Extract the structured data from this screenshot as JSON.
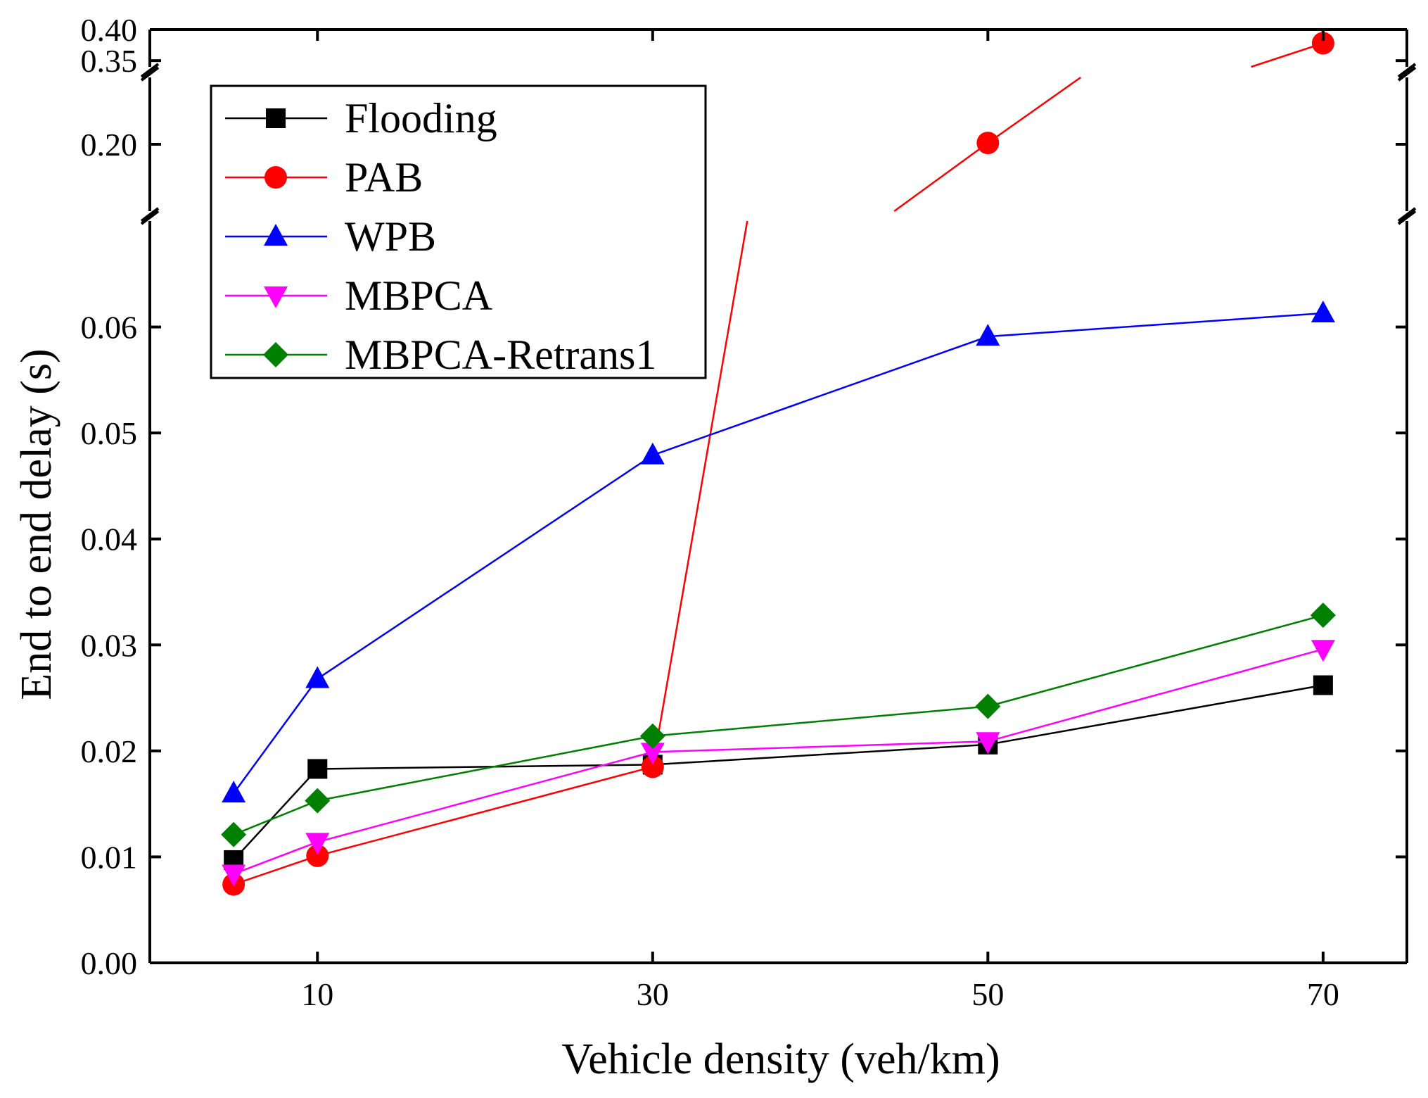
{
  "chart_data": {
    "type": "line",
    "title": "",
    "xlabel": "Vehicle density (veh/km)",
    "ylabel": "End to end delay (s)",
    "x": [
      5,
      10,
      30,
      50,
      70
    ],
    "xlim": [
      0,
      75
    ],
    "xticks": [
      10,
      30,
      50,
      70
    ],
    "xtick_labels": [
      "10",
      "30",
      "50",
      "70"
    ],
    "y_segments": [
      {
        "range": [
          0,
          0.07
        ],
        "ticks": [
          0.0,
          0.01,
          0.02,
          0.03,
          0.04,
          0.05,
          0.06
        ],
        "tick_labels": [
          "0.00",
          "0.01",
          "0.02",
          "0.03",
          "0.04",
          "0.05",
          "0.06"
        ]
      },
      {
        "range": [
          0.15,
          0.25
        ],
        "ticks": [
          0.2
        ],
        "tick_labels": [
          "0.20"
        ]
      },
      {
        "range": [
          0.34,
          0.4
        ],
        "ticks": [
          0.35,
          0.4
        ],
        "tick_labels": [
          "0.35",
          "0.40"
        ]
      }
    ],
    "legend_position": "top-left",
    "series": [
      {
        "name": "Flooding",
        "color": "#000000",
        "marker": "square",
        "values": [
          0.0097,
          0.0183,
          0.0187,
          0.0206,
          0.0262
        ]
      },
      {
        "name": "PAB",
        "color": "#ff0000",
        "marker": "circle",
        "values": [
          0.0074,
          0.0101,
          0.0185,
          0.201,
          0.378
        ]
      },
      {
        "name": "WPB",
        "color": "#0000ff",
        "marker": "triangle-up",
        "values": [
          0.016,
          0.0268,
          0.0479,
          0.0591,
          0.0613
        ]
      },
      {
        "name": "MBPCA",
        "color": "#ff00ff",
        "marker": "triangle-down",
        "values": [
          0.0084,
          0.0114,
          0.0199,
          0.0209,
          0.0296
        ]
      },
      {
        "name": "MBPCA-Retrans1",
        "color": "#008000",
        "marker": "diamond",
        "values": [
          0.0121,
          0.0153,
          0.0214,
          0.0242,
          0.0328
        ]
      }
    ]
  }
}
